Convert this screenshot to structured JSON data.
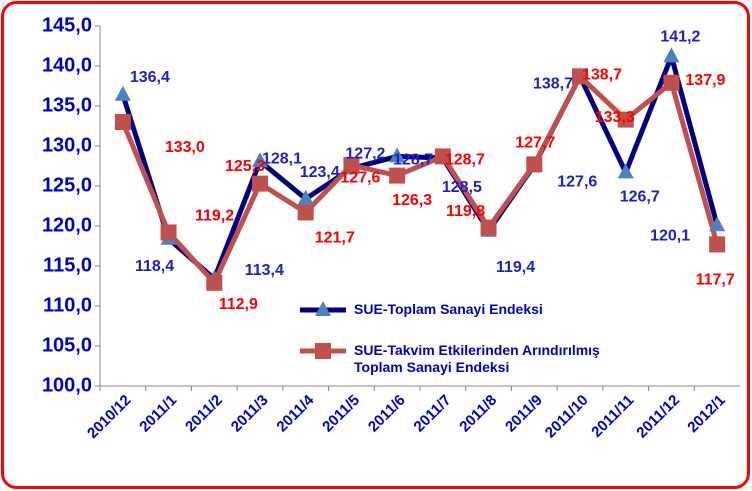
{
  "chart_data": {
    "type": "line",
    "categories": [
      "2010/12",
      "2011/1",
      "2011/2",
      "2011/3",
      "2011/4",
      "2011/5",
      "2011/6",
      "2011/7",
      "2011/8",
      "2011/9",
      "2011/10",
      "2011/11",
      "2011/12",
      "2012/1"
    ],
    "series": [
      {
        "name": "SUE-Toplam Sanayi Endeksi",
        "color": "#000080",
        "marker_color": "#4f81bd",
        "marker": "triangle",
        "values": [
          136.4,
          118.4,
          113.4,
          128.1,
          123.4,
          127.2,
          128.7,
          128.5,
          119.4,
          127.6,
          138.7,
          126.7,
          141.2,
          120.1
        ],
        "value_labels": [
          "136,4",
          "118,4",
          "113,4",
          "128,1",
          "123,4",
          "127,2",
          "128,7",
          "128,5",
          "119,4",
          "127,6",
          "138,7",
          "126,7",
          "141,2",
          "120,1"
        ]
      },
      {
        "name": "SUE-Takvim Etkilerinden Arındırılmış Toplam Sanayi Endeksi",
        "color": "#c0504d",
        "marker_color": "#c0504d",
        "marker": "square",
        "values": [
          133.0,
          119.2,
          112.9,
          125.3,
          121.7,
          127.6,
          126.3,
          128.7,
          119.8,
          127.7,
          138.7,
          133.3,
          137.9,
          117.7
        ],
        "value_labels": [
          "133,0",
          "119,2",
          "112,9",
          "125,3",
          "121,7",
          "127,6",
          "126,3",
          "128,7",
          "119,8",
          "127,7",
          "138,7",
          "133,3",
          "137,9",
          "117,7"
        ]
      }
    ],
    "ylim": [
      100,
      145
    ],
    "yticks": [
      {
        "value": 100,
        "label": "100,0"
      },
      {
        "value": 105,
        "label": "105,0"
      },
      {
        "value": 110,
        "label": "110,0"
      },
      {
        "value": 115,
        "label": "115,0"
      },
      {
        "value": 120,
        "label": "120,0"
      },
      {
        "value": 125,
        "label": "125,0"
      },
      {
        "value": 130,
        "label": "130,0"
      },
      {
        "value": 135,
        "label": "135,0"
      },
      {
        "value": 140,
        "label": "140,0"
      },
      {
        "value": 145,
        "label": "145,0"
      }
    ],
    "grid": false
  }
}
